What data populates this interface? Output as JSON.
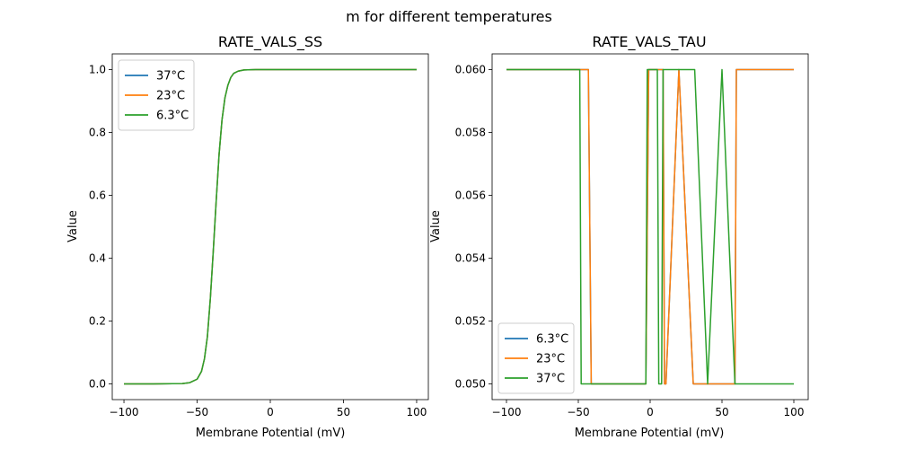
{
  "figure_title": "m for different temperatures",
  "colors": {
    "blue": "#1f77b4",
    "orange": "#ff7f0e",
    "green": "#2ca02c"
  },
  "chart_data": [
    {
      "type": "line",
      "title": "RATE_VALS_SS",
      "xlabel": "Membrane Potential (mV)",
      "ylabel": "Value",
      "xlim": [
        -108,
        108
      ],
      "ylim": [
        -0.05,
        1.05
      ],
      "xticks": [
        -100,
        -50,
        0,
        50,
        100
      ],
      "xtick_labels": [
        "−100",
        "−50",
        "0",
        "50",
        "100"
      ],
      "yticks": [
        0.0,
        0.2,
        0.4,
        0.6,
        0.8,
        1.0
      ],
      "ytick_labels": [
        "0.0",
        "0.2",
        "0.4",
        "0.6",
        "0.8",
        "1.0"
      ],
      "legend_position": "top-left",
      "series": [
        {
          "name": "37°C",
          "color": "#1f77b4",
          "x": [
            -100,
            -80,
            -60,
            -55,
            -50,
            -47,
            -45,
            -43,
            -41,
            -39,
            -37,
            -35,
            -33,
            -31,
            -29,
            -27,
            -25,
            -22,
            -18,
            -10,
            0,
            20,
            50,
            100
          ],
          "y": [
            0.0,
            0.0,
            0.001,
            0.004,
            0.015,
            0.04,
            0.08,
            0.15,
            0.27,
            0.42,
            0.58,
            0.73,
            0.84,
            0.91,
            0.95,
            0.975,
            0.988,
            0.995,
            0.999,
            1.0,
            1.0,
            1.0,
            1.0,
            1.0
          ]
        },
        {
          "name": "23°C",
          "color": "#ff7f0e",
          "x": [
            -100,
            -80,
            -60,
            -55,
            -50,
            -47,
            -45,
            -43,
            -41,
            -39,
            -37,
            -35,
            -33,
            -31,
            -29,
            -27,
            -25,
            -22,
            -18,
            -10,
            0,
            20,
            50,
            100
          ],
          "y": [
            0.0,
            0.0,
            0.001,
            0.004,
            0.015,
            0.04,
            0.08,
            0.15,
            0.27,
            0.42,
            0.58,
            0.73,
            0.84,
            0.91,
            0.95,
            0.975,
            0.988,
            0.995,
            0.999,
            1.0,
            1.0,
            1.0,
            1.0,
            1.0
          ]
        },
        {
          "name": "6.3°C",
          "color": "#2ca02c",
          "x": [
            -100,
            -80,
            -60,
            -55,
            -50,
            -47,
            -45,
            -43,
            -41,
            -39,
            -37,
            -35,
            -33,
            -31,
            -29,
            -27,
            -25,
            -22,
            -18,
            -10,
            0,
            20,
            50,
            100
          ],
          "y": [
            0.0,
            0.0,
            0.001,
            0.004,
            0.015,
            0.04,
            0.08,
            0.15,
            0.27,
            0.42,
            0.58,
            0.73,
            0.84,
            0.91,
            0.95,
            0.975,
            0.988,
            0.995,
            0.999,
            1.0,
            1.0,
            1.0,
            1.0,
            1.0
          ]
        }
      ]
    },
    {
      "type": "line",
      "title": "RATE_VALS_TAU",
      "xlabel": "Membrane Potential (mV)",
      "ylabel": "Value",
      "xlim": [
        -110,
        110
      ],
      "ylim": [
        0.0495,
        0.0605
      ],
      "xticks": [
        -100,
        -50,
        0,
        50,
        100
      ],
      "xtick_labels": [
        "−100",
        "−50",
        "0",
        "50",
        "100"
      ],
      "yticks": [
        0.05,
        0.052,
        0.054,
        0.056,
        0.058,
        0.06
      ],
      "ytick_labels": [
        "0.050",
        "0.052",
        "0.054",
        "0.056",
        "0.058",
        "0.060"
      ],
      "legend_position": "bottom-left",
      "series": [
        {
          "name": "6.3°C",
          "color": "#1f77b4",
          "x": [
            -100,
            -43,
            -41,
            -3,
            -1,
            0,
            2,
            9,
            10,
            11,
            20,
            30,
            31,
            40,
            48,
            50,
            59,
            60,
            100
          ],
          "y": [
            0.06,
            0.06,
            0.05,
            0.05,
            0.06,
            0.06,
            0.06,
            0.06,
            0.05,
            0.05,
            0.06,
            0.05,
            0.05,
            0.05,
            0.05,
            0.05,
            0.05,
            0.06,
            0.06
          ]
        },
        {
          "name": "23°C",
          "color": "#ff7f0e",
          "x": [
            -100,
            -43,
            -41,
            -3,
            -1,
            0,
            2,
            9,
            10,
            11,
            20,
            30,
            31,
            40,
            48,
            50,
            59,
            60,
            100
          ],
          "y": [
            0.06,
            0.06,
            0.05,
            0.05,
            0.06,
            0.06,
            0.06,
            0.06,
            0.05,
            0.05,
            0.06,
            0.05,
            0.05,
            0.05,
            0.05,
            0.05,
            0.05,
            0.06,
            0.06
          ]
        },
        {
          "name": "37°C",
          "color": "#2ca02c",
          "x": [
            -100,
            -49,
            -48,
            -3,
            -2,
            1,
            2,
            5,
            6,
            8,
            9,
            10,
            20,
            30,
            31,
            40,
            50,
            59,
            60,
            100
          ],
          "y": [
            0.06,
            0.06,
            0.05,
            0.05,
            0.06,
            0.06,
            0.06,
            0.06,
            0.05,
            0.05,
            0.06,
            0.06,
            0.06,
            0.06,
            0.06,
            0.05,
            0.06,
            0.05,
            0.05,
            0.05
          ]
        }
      ]
    }
  ]
}
